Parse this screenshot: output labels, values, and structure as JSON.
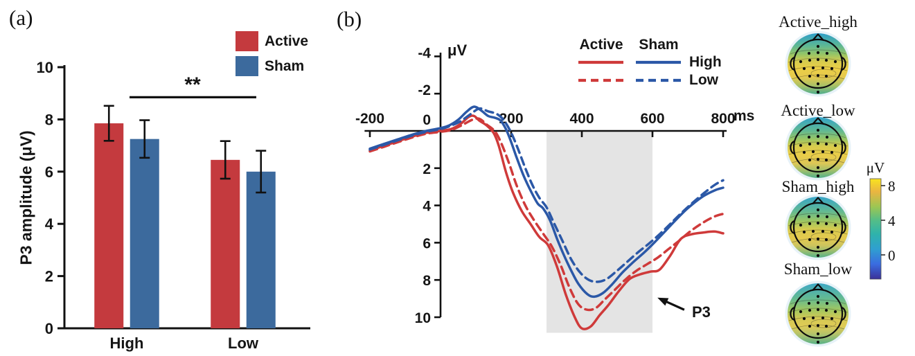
{
  "figure": {
    "panel_a_letter": "(a)",
    "panel_b_letter": "(b)",
    "significance_label": "**"
  },
  "chart_data": [
    {
      "type": "bar",
      "panel": "a",
      "ylabel": "P3 amplitude (μV)",
      "categories": [
        "High",
        "Low"
      ],
      "yticks": [
        0,
        2,
        4,
        6,
        8,
        10
      ],
      "ylim": [
        0,
        10
      ],
      "series": [
        {
          "name": "Active",
          "color": "#c43a3e",
          "values": [
            7.85,
            6.45
          ],
          "errors": [
            0.67,
            0.72
          ]
        },
        {
          "name": "Sham",
          "color": "#3c6a9d",
          "values": [
            7.25,
            6.0
          ],
          "errors": [
            0.72,
            0.8
          ]
        }
      ],
      "significance": {
        "label": "**",
        "between": [
          "High",
          "Low"
        ],
        "y_value": 8.85
      }
    },
    {
      "type": "line",
      "panel": "b",
      "unit_label": "μV",
      "x_unit_label": "ms",
      "y_inverted": true,
      "yticks": [
        -4,
        -2,
        0,
        2,
        4,
        6,
        8,
        10
      ],
      "xticks": [
        -200,
        200,
        400,
        600,
        800
      ],
      "ylim": [
        -4,
        10.8
      ],
      "xlim": [
        -215,
        810
      ],
      "shaded_region": {
        "x0": 300,
        "x1": 600,
        "color": "#e4e4e4"
      },
      "annotation": {
        "label": "P3",
        "arrow_from": [
          690,
          9.6
        ],
        "arrow_to": [
          614,
          8.95
        ]
      },
      "legend": {
        "col_headers": [
          "Active",
          "Sham"
        ],
        "row_labels": [
          "High",
          "Low"
        ]
      },
      "series": [
        {
          "name": "Active_High",
          "color": "#cf3a3a",
          "dash": false,
          "points": [
            [
              -200,
              1.05
            ],
            [
              -160,
              0.8
            ],
            [
              -120,
              0.55
            ],
            [
              -80,
              0.3
            ],
            [
              -40,
              0.1
            ],
            [
              0,
              0.0
            ],
            [
              30,
              -0.1
            ],
            [
              55,
              -0.35
            ],
            [
              80,
              -0.75
            ],
            [
              95,
              -0.8
            ],
            [
              110,
              -0.55
            ],
            [
              130,
              -0.3
            ],
            [
              150,
              0.1
            ],
            [
              165,
              0.8
            ],
            [
              185,
              2.2
            ],
            [
              205,
              3.3
            ],
            [
              230,
              4.3
            ],
            [
              255,
              5.0
            ],
            [
              280,
              5.7
            ],
            [
              305,
              6.15
            ],
            [
              330,
              7.3
            ],
            [
              355,
              8.8
            ],
            [
              380,
              10.0
            ],
            [
              400,
              10.6
            ],
            [
              425,
              10.5
            ],
            [
              450,
              9.9
            ],
            [
              475,
              9.35
            ],
            [
              505,
              8.6
            ],
            [
              535,
              7.95
            ],
            [
              565,
              7.7
            ],
            [
              595,
              7.55
            ],
            [
              620,
              7.45
            ],
            [
              650,
              6.7
            ],
            [
              680,
              5.8
            ],
            [
              710,
              5.55
            ],
            [
              745,
              5.45
            ],
            [
              775,
              5.4
            ],
            [
              800,
              5.5
            ]
          ]
        },
        {
          "name": "Active_Low",
          "color": "#cf3a3a",
          "dash": true,
          "points": [
            [
              -200,
              1.1
            ],
            [
              -160,
              0.85
            ],
            [
              -120,
              0.6
            ],
            [
              -80,
              0.35
            ],
            [
              -40,
              0.15
            ],
            [
              0,
              0.05
            ],
            [
              30,
              -0.05
            ],
            [
              60,
              -0.3
            ],
            [
              90,
              -0.6
            ],
            [
              110,
              -0.65
            ],
            [
              130,
              -0.35
            ],
            [
              155,
              0.05
            ],
            [
              175,
              0.8
            ],
            [
              195,
              1.8
            ],
            [
              215,
              2.9
            ],
            [
              240,
              4.0
            ],
            [
              265,
              4.8
            ],
            [
              290,
              5.5
            ],
            [
              315,
              6.2
            ],
            [
              340,
              7.2
            ],
            [
              365,
              8.4
            ],
            [
              390,
              9.3
            ],
            [
              415,
              9.6
            ],
            [
              440,
              9.5
            ],
            [
              465,
              9.05
            ],
            [
              495,
              8.5
            ],
            [
              525,
              7.95
            ],
            [
              555,
              7.5
            ],
            [
              585,
              7.15
            ],
            [
              615,
              6.8
            ],
            [
              645,
              6.35
            ],
            [
              675,
              5.9
            ],
            [
              710,
              5.35
            ],
            [
              745,
              4.9
            ],
            [
              775,
              4.6
            ],
            [
              800,
              4.45
            ]
          ]
        },
        {
          "name": "Sham_High",
          "color": "#2b58a7",
          "dash": false,
          "points": [
            [
              -200,
              0.95
            ],
            [
              -160,
              0.7
            ],
            [
              -120,
              0.45
            ],
            [
              -80,
              0.2
            ],
            [
              -40,
              0.0
            ],
            [
              0,
              -0.15
            ],
            [
              25,
              -0.3
            ],
            [
              50,
              -0.6
            ],
            [
              75,
              -1.05
            ],
            [
              95,
              -1.3
            ],
            [
              115,
              -1.1
            ],
            [
              135,
              -0.8
            ],
            [
              155,
              -0.7
            ],
            [
              170,
              -0.55
            ],
            [
              185,
              -0.1
            ],
            [
              200,
              0.6
            ],
            [
              215,
              1.4
            ],
            [
              235,
              2.4
            ],
            [
              255,
              3.2
            ],
            [
              275,
              3.9
            ],
            [
              290,
              4.15
            ],
            [
              310,
              4.8
            ],
            [
              330,
              5.8
            ],
            [
              350,
              6.7
            ],
            [
              370,
              7.5
            ],
            [
              390,
              8.2
            ],
            [
              415,
              8.75
            ],
            [
              435,
              8.9
            ],
            [
              460,
              8.7
            ],
            [
              485,
              8.25
            ],
            [
              515,
              7.6
            ],
            [
              545,
              7.05
            ],
            [
              575,
              6.55
            ],
            [
              605,
              6.0
            ],
            [
              635,
              5.4
            ],
            [
              665,
              4.8
            ],
            [
              700,
              4.15
            ],
            [
              740,
              3.55
            ],
            [
              775,
              3.2
            ],
            [
              800,
              3.05
            ]
          ]
        },
        {
          "name": "Sham_Low",
          "color": "#2b58a7",
          "dash": true,
          "points": [
            [
              -200,
              1.0
            ],
            [
              -160,
              0.75
            ],
            [
              -120,
              0.5
            ],
            [
              -80,
              0.25
            ],
            [
              -40,
              0.05
            ],
            [
              0,
              -0.1
            ],
            [
              25,
              -0.25
            ],
            [
              55,
              -0.5
            ],
            [
              85,
              -0.9
            ],
            [
              110,
              -1.2
            ],
            [
              135,
              -1.05
            ],
            [
              160,
              -0.9
            ],
            [
              180,
              -0.55
            ],
            [
              200,
              0.1
            ],
            [
              220,
              1.0
            ],
            [
              240,
              2.0
            ],
            [
              260,
              2.9
            ],
            [
              280,
              3.6
            ],
            [
              300,
              4.1
            ],
            [
              320,
              4.9
            ],
            [
              345,
              5.9
            ],
            [
              370,
              6.9
            ],
            [
              395,
              7.6
            ],
            [
              420,
              8.0
            ],
            [
              445,
              8.1
            ],
            [
              470,
              7.95
            ],
            [
              500,
              7.5
            ],
            [
              530,
              7.0
            ],
            [
              560,
              6.5
            ],
            [
              590,
              6.05
            ],
            [
              620,
              5.55
            ],
            [
              650,
              5.0
            ],
            [
              685,
              4.35
            ],
            [
              720,
              3.75
            ],
            [
              755,
              3.2
            ],
            [
              780,
              2.85
            ],
            [
              800,
              2.65
            ]
          ]
        }
      ]
    }
  ],
  "topomaps": {
    "items": [
      {
        "label": "Active_high",
        "gradient": [
          [
            0,
            "#2e9ec9"
          ],
          [
            0.2,
            "#5cb795"
          ],
          [
            0.34,
            "#93c467"
          ],
          [
            0.46,
            "#d6cb4e"
          ],
          [
            0.58,
            "#eccf46"
          ],
          [
            0.72,
            "#e5c94d"
          ],
          [
            0.86,
            "#a8c167"
          ],
          [
            1,
            "#4fae8e"
          ]
        ]
      },
      {
        "label": "Active_low",
        "gradient": [
          [
            0,
            "#33a2c9"
          ],
          [
            0.22,
            "#5fb894"
          ],
          [
            0.36,
            "#97c565"
          ],
          [
            0.48,
            "#d8cc4d"
          ],
          [
            0.62,
            "#e9cd49"
          ],
          [
            0.76,
            "#ddc756"
          ],
          [
            0.88,
            "#9dbf6d"
          ],
          [
            1,
            "#52b08b"
          ]
        ]
      },
      {
        "label": "Sham_high",
        "gradient": [
          [
            0,
            "#37a4c8"
          ],
          [
            0.24,
            "#62b992"
          ],
          [
            0.4,
            "#9cc662"
          ],
          [
            0.54,
            "#d9cb4e"
          ],
          [
            0.68,
            "#e4ca4e"
          ],
          [
            0.8,
            "#cdc45e"
          ],
          [
            0.9,
            "#94bd72"
          ],
          [
            1,
            "#55b189"
          ]
        ]
      },
      {
        "label": "Sham_low",
        "gradient": [
          [
            0,
            "#3ea8c6"
          ],
          [
            0.26,
            "#66bb8f"
          ],
          [
            0.44,
            "#a3c75f"
          ],
          [
            0.58,
            "#d5c954"
          ],
          [
            0.7,
            "#decb55"
          ],
          [
            0.82,
            "#b9c468"
          ],
          [
            0.92,
            "#86ba7a"
          ],
          [
            1,
            "#58b287"
          ]
        ]
      }
    ],
    "colorbar": {
      "unit": "μV",
      "ticks": [
        8,
        4,
        0
      ],
      "gradient": [
        [
          0,
          "#f9e41f"
        ],
        [
          0.13,
          "#eab541"
        ],
        [
          0.28,
          "#9cc653"
        ],
        [
          0.42,
          "#52bd89"
        ],
        [
          0.55,
          "#2fb3ab"
        ],
        [
          0.7,
          "#2f9fd0"
        ],
        [
          0.85,
          "#3a6ce0"
        ],
        [
          1,
          "#3b3097"
        ]
      ]
    }
  }
}
